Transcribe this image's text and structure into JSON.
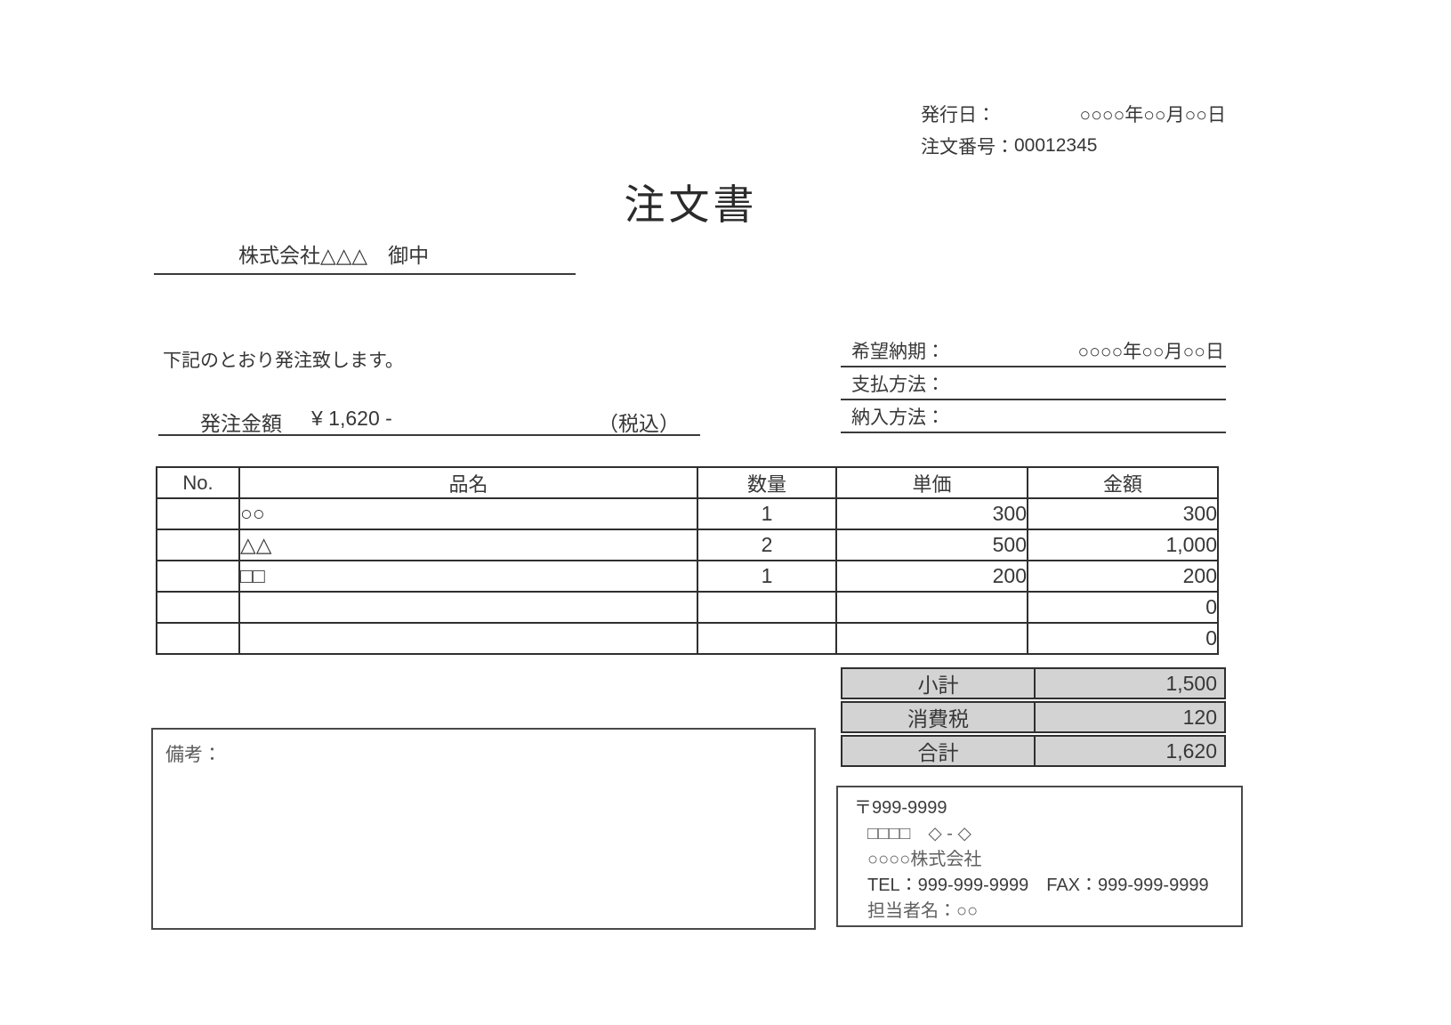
{
  "header": {
    "issue_date_label": "発行日：",
    "issue_date_value": "○○○○年○○月○○日",
    "order_number_label": "注文番号：",
    "order_number_value": "00012345",
    "title": "注文書"
  },
  "addressee": {
    "name": "株式会社△△△　御中"
  },
  "intro": {
    "text": "下記のとおり発注致します。"
  },
  "amount_line": {
    "label": "発注金額",
    "value": "¥ 1,620 -",
    "tax_note": "（税込）"
  },
  "delivery_fields": [
    {
      "label": "希望納期：",
      "value": "○○○○年○○月○○日"
    },
    {
      "label": "支払方法：",
      "value": ""
    },
    {
      "label": "納入方法：",
      "value": ""
    }
  ],
  "items_table": {
    "headers": [
      "No.",
      "品名",
      "数量",
      "単価",
      "金額"
    ],
    "rows": [
      {
        "no": "",
        "name": "○○",
        "qty": "1",
        "unit_price": "300",
        "amount": "300"
      },
      {
        "no": "",
        "name": "△△",
        "qty": "2",
        "unit_price": "500",
        "amount": "1,000"
      },
      {
        "no": "",
        "name": "□□",
        "qty": "1",
        "unit_price": "200",
        "amount": "200"
      },
      {
        "no": "",
        "name": "",
        "qty": "",
        "unit_price": "",
        "amount": "0"
      },
      {
        "no": "",
        "name": "",
        "qty": "",
        "unit_price": "",
        "amount": "0"
      }
    ],
    "totals": [
      {
        "label": "小計",
        "value": "1,500"
      },
      {
        "label": "消費税",
        "value": "120"
      },
      {
        "label": "合計",
        "value": "1,620"
      }
    ]
  },
  "remarks": {
    "label": "備考："
  },
  "supplier": {
    "postal_code": "〒999-9999",
    "address": "□□□□　◇ - ◇",
    "company": "○○○○株式会社",
    "tel_fax": "TEL：999-999-9999　FAX：999-999-9999",
    "contact": "担当者名：○○"
  },
  "colors": {
    "totals_bg": "#d3d3d3",
    "border": "#2f2f2f",
    "text": "#373737",
    "light_text": "#5f5f5f"
  }
}
